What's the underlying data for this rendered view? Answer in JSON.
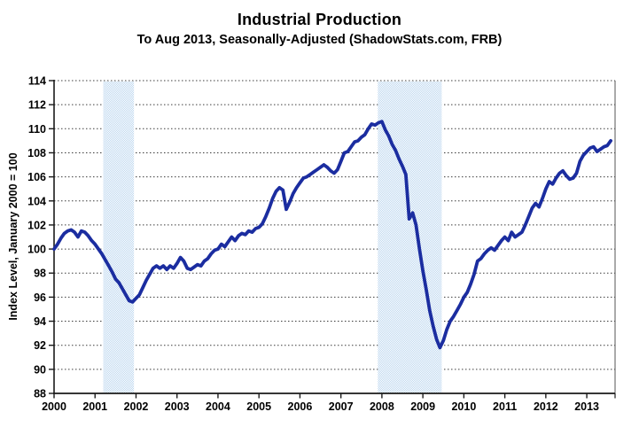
{
  "chart_data": {
    "type": "line",
    "title": "Industrial Production",
    "subtitle": "To Aug 2013, Seasonally-Adjusted (ShadowStats.com, FRB)",
    "xlabel": "",
    "ylabel": "Index Level, January 2000 = 100",
    "ylim": [
      88,
      114
    ],
    "xlim": [
      2000.0,
      2013.69
    ],
    "y_ticks": [
      88,
      90,
      92,
      94,
      96,
      98,
      100,
      102,
      104,
      106,
      108,
      110,
      112,
      114
    ],
    "x_ticks": [
      "2000",
      "2001",
      "2002",
      "2003",
      "2004",
      "2005",
      "2006",
      "2007",
      "2008",
      "2009",
      "2010",
      "2011",
      "2012",
      "2013"
    ],
    "grid": "horizontal-dotted",
    "legend": "none",
    "line_color": "#1b2da0",
    "recession_band_color": "#bdd7ef",
    "recession_bands": [
      {
        "start": 2001.2,
        "end": 2001.95
      },
      {
        "start": 2007.9,
        "end": 2009.46
      }
    ],
    "series": [
      {
        "name": "Industrial Production Index (Jan 2000 = 100)",
        "frequency": "monthly",
        "start_month": "2000-01",
        "end_month": "2013-08",
        "values": [
          100.0,
          100.4,
          100.9,
          101.3,
          101.5,
          101.6,
          101.4,
          101.0,
          101.5,
          101.4,
          101.1,
          100.7,
          100.4,
          100.0,
          99.6,
          99.1,
          98.6,
          98.1,
          97.5,
          97.2,
          96.7,
          96.2,
          95.7,
          95.6,
          95.9,
          96.2,
          96.8,
          97.4,
          97.9,
          98.4,
          98.6,
          98.4,
          98.6,
          98.3,
          98.6,
          98.4,
          98.8,
          99.3,
          99.0,
          98.4,
          98.3,
          98.5,
          98.7,
          98.6,
          99.0,
          99.2,
          99.6,
          99.9,
          100.0,
          100.4,
          100.2,
          100.6,
          101.0,
          100.7,
          101.1,
          101.3,
          101.2,
          101.5,
          101.4,
          101.7,
          101.8,
          102.1,
          102.7,
          103.4,
          104.2,
          104.8,
          105.1,
          104.9,
          103.3,
          103.9,
          104.6,
          105.1,
          105.5,
          105.9,
          106.0,
          106.2,
          106.4,
          106.6,
          106.8,
          107.0,
          106.8,
          106.5,
          106.3,
          106.6,
          107.3,
          108.0,
          108.1,
          108.5,
          108.9,
          109.0,
          109.3,
          109.5,
          110.0,
          110.4,
          110.3,
          110.5,
          110.6,
          109.9,
          109.4,
          108.7,
          108.2,
          107.5,
          106.9,
          106.2,
          102.5,
          103.0,
          102.0,
          100.0,
          98.2,
          96.6,
          94.9,
          93.6,
          92.5,
          91.8,
          92.4,
          93.3,
          94.0,
          94.4,
          94.9,
          95.4,
          96.0,
          96.4,
          97.1,
          97.9,
          99.0,
          99.2,
          99.6,
          99.9,
          100.1,
          99.9,
          100.3,
          100.7,
          101.0,
          100.7,
          101.4,
          101.0,
          101.2,
          101.4,
          102.0,
          102.7,
          103.4,
          103.8,
          103.5,
          104.2,
          105.0,
          105.6,
          105.4,
          105.9,
          106.3,
          106.5,
          106.1,
          105.8,
          105.9,
          106.3,
          107.3,
          107.8,
          108.1,
          108.4,
          108.5,
          108.1,
          108.3,
          108.5,
          108.6,
          109.0
        ]
      }
    ]
  }
}
